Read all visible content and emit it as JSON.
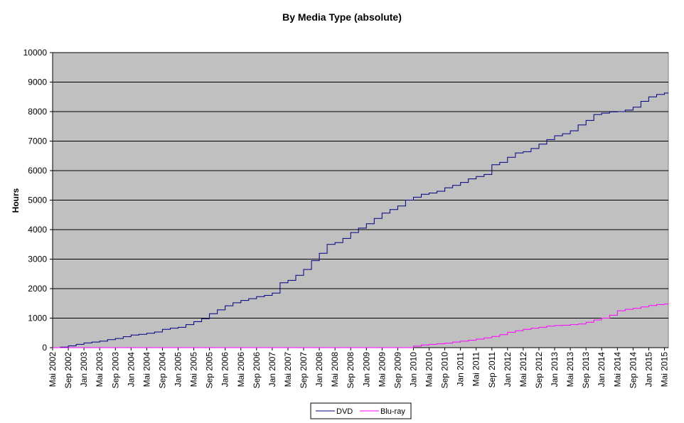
{
  "chart_data": {
    "type": "line",
    "title": "By Media Type (absolute)",
    "ylabel": "Hours",
    "xlabel": "",
    "ylim": [
      0,
      10000
    ],
    "yticks": [
      0,
      1000,
      2000,
      3000,
      4000,
      5000,
      6000,
      7000,
      8000,
      9000,
      10000
    ],
    "xlim": [
      "2002-05",
      "2015-06"
    ],
    "xticks": [
      "Mai 2002",
      "Sep 2002",
      "Jan 2003",
      "Mai 2003",
      "Sep 2003",
      "Jan 2004",
      "Mai 2004",
      "Sep 2004",
      "Jan 2005",
      "Mai 2005",
      "Sep 2005",
      "Jan 2006",
      "Mai 2006",
      "Sep 2006",
      "Jan 2007",
      "Mai 2007",
      "Sep 2007",
      "Jan 2008",
      "Mai 2008",
      "Sep 2008",
      "Jan 2009",
      "Mai 2009",
      "Sep 2009",
      "Jan 2010",
      "Mai 2010",
      "Sep 2010",
      "Jan 2011",
      "Mai 2011",
      "Sep 2011",
      "Jan 2012",
      "Mai 2012",
      "Sep 2012",
      "Jan 2013",
      "Mai 2013",
      "Sep 2013",
      "Jan 2014",
      "Mai 2014",
      "Sep 2014",
      "Jan 2015",
      "Mai 2015"
    ],
    "grid": "horizontal",
    "plot_background": "#c0c0c0",
    "legend_position": "bottom",
    "series": [
      {
        "name": "DVD",
        "color": "#000080",
        "points": [
          [
            "2002-05",
            0
          ],
          [
            "2002-07",
            20
          ],
          [
            "2002-09",
            60
          ],
          [
            "2002-11",
            110
          ],
          [
            "2003-01",
            160
          ],
          [
            "2003-03",
            190
          ],
          [
            "2003-05",
            220
          ],
          [
            "2003-07",
            270
          ],
          [
            "2003-09",
            310
          ],
          [
            "2003-11",
            370
          ],
          [
            "2004-01",
            430
          ],
          [
            "2004-03",
            450
          ],
          [
            "2004-05",
            490
          ],
          [
            "2004-07",
            530
          ],
          [
            "2004-09",
            620
          ],
          [
            "2004-11",
            660
          ],
          [
            "2005-01",
            690
          ],
          [
            "2005-03",
            780
          ],
          [
            "2005-05",
            880
          ],
          [
            "2005-07",
            980
          ],
          [
            "2005-09",
            1150
          ],
          [
            "2005-11",
            1280
          ],
          [
            "2006-01",
            1420
          ],
          [
            "2006-03",
            1520
          ],
          [
            "2006-05",
            1600
          ],
          [
            "2006-07",
            1660
          ],
          [
            "2006-09",
            1730
          ],
          [
            "2006-11",
            1770
          ],
          [
            "2007-01",
            1850
          ],
          [
            "2007-03",
            2200
          ],
          [
            "2007-05",
            2280
          ],
          [
            "2007-07",
            2450
          ],
          [
            "2007-09",
            2650
          ],
          [
            "2007-11",
            2950
          ],
          [
            "2008-01",
            3200
          ],
          [
            "2008-03",
            3500
          ],
          [
            "2008-05",
            3560
          ],
          [
            "2008-07",
            3700
          ],
          [
            "2008-09",
            3900
          ],
          [
            "2008-11",
            4050
          ],
          [
            "2009-01",
            4200
          ],
          [
            "2009-03",
            4380
          ],
          [
            "2009-05",
            4560
          ],
          [
            "2009-07",
            4680
          ],
          [
            "2009-09",
            4800
          ],
          [
            "2009-11",
            5000
          ],
          [
            "2010-01",
            5100
          ],
          [
            "2010-03",
            5200
          ],
          [
            "2010-05",
            5240
          ],
          [
            "2010-07",
            5300
          ],
          [
            "2010-09",
            5420
          ],
          [
            "2010-11",
            5500
          ],
          [
            "2011-01",
            5600
          ],
          [
            "2011-03",
            5720
          ],
          [
            "2011-05",
            5800
          ],
          [
            "2011-07",
            5870
          ],
          [
            "2011-09",
            6200
          ],
          [
            "2011-11",
            6280
          ],
          [
            "2012-01",
            6450
          ],
          [
            "2012-03",
            6600
          ],
          [
            "2012-05",
            6640
          ],
          [
            "2012-07",
            6750
          ],
          [
            "2012-09",
            6900
          ],
          [
            "2012-11",
            7050
          ],
          [
            "2013-01",
            7180
          ],
          [
            "2013-03",
            7250
          ],
          [
            "2013-05",
            7350
          ],
          [
            "2013-07",
            7550
          ],
          [
            "2013-09",
            7700
          ],
          [
            "2013-11",
            7900
          ],
          [
            "2014-01",
            7950
          ],
          [
            "2014-03",
            7990
          ],
          [
            "2014-05",
            8000
          ],
          [
            "2014-07",
            8050
          ],
          [
            "2014-09",
            8150
          ],
          [
            "2014-11",
            8350
          ],
          [
            "2015-01",
            8500
          ],
          [
            "2015-03",
            8580
          ],
          [
            "2015-05",
            8630
          ],
          [
            "2015-06",
            8630
          ]
        ]
      },
      {
        "name": "Blu-ray",
        "color": "#ff00ff",
        "points": [
          [
            "2002-05",
            0
          ],
          [
            "2009-11",
            0
          ],
          [
            "2010-01",
            50
          ],
          [
            "2010-03",
            90
          ],
          [
            "2010-05",
            110
          ],
          [
            "2010-07",
            130
          ],
          [
            "2010-09",
            150
          ],
          [
            "2010-11",
            190
          ],
          [
            "2011-01",
            220
          ],
          [
            "2011-03",
            250
          ],
          [
            "2011-05",
            290
          ],
          [
            "2011-07",
            330
          ],
          [
            "2011-09",
            380
          ],
          [
            "2011-11",
            440
          ],
          [
            "2012-01",
            520
          ],
          [
            "2012-03",
            570
          ],
          [
            "2012-05",
            620
          ],
          [
            "2012-07",
            660
          ],
          [
            "2012-09",
            690
          ],
          [
            "2012-11",
            730
          ],
          [
            "2013-01",
            750
          ],
          [
            "2013-03",
            760
          ],
          [
            "2013-05",
            780
          ],
          [
            "2013-07",
            800
          ],
          [
            "2013-09",
            860
          ],
          [
            "2013-11",
            940
          ],
          [
            "2014-01",
            1000
          ],
          [
            "2014-03",
            1100
          ],
          [
            "2014-05",
            1250
          ],
          [
            "2014-07",
            1300
          ],
          [
            "2014-09",
            1330
          ],
          [
            "2014-11",
            1380
          ],
          [
            "2015-01",
            1430
          ],
          [
            "2015-03",
            1460
          ],
          [
            "2015-05",
            1480
          ],
          [
            "2015-06",
            1490
          ]
        ]
      }
    ]
  }
}
